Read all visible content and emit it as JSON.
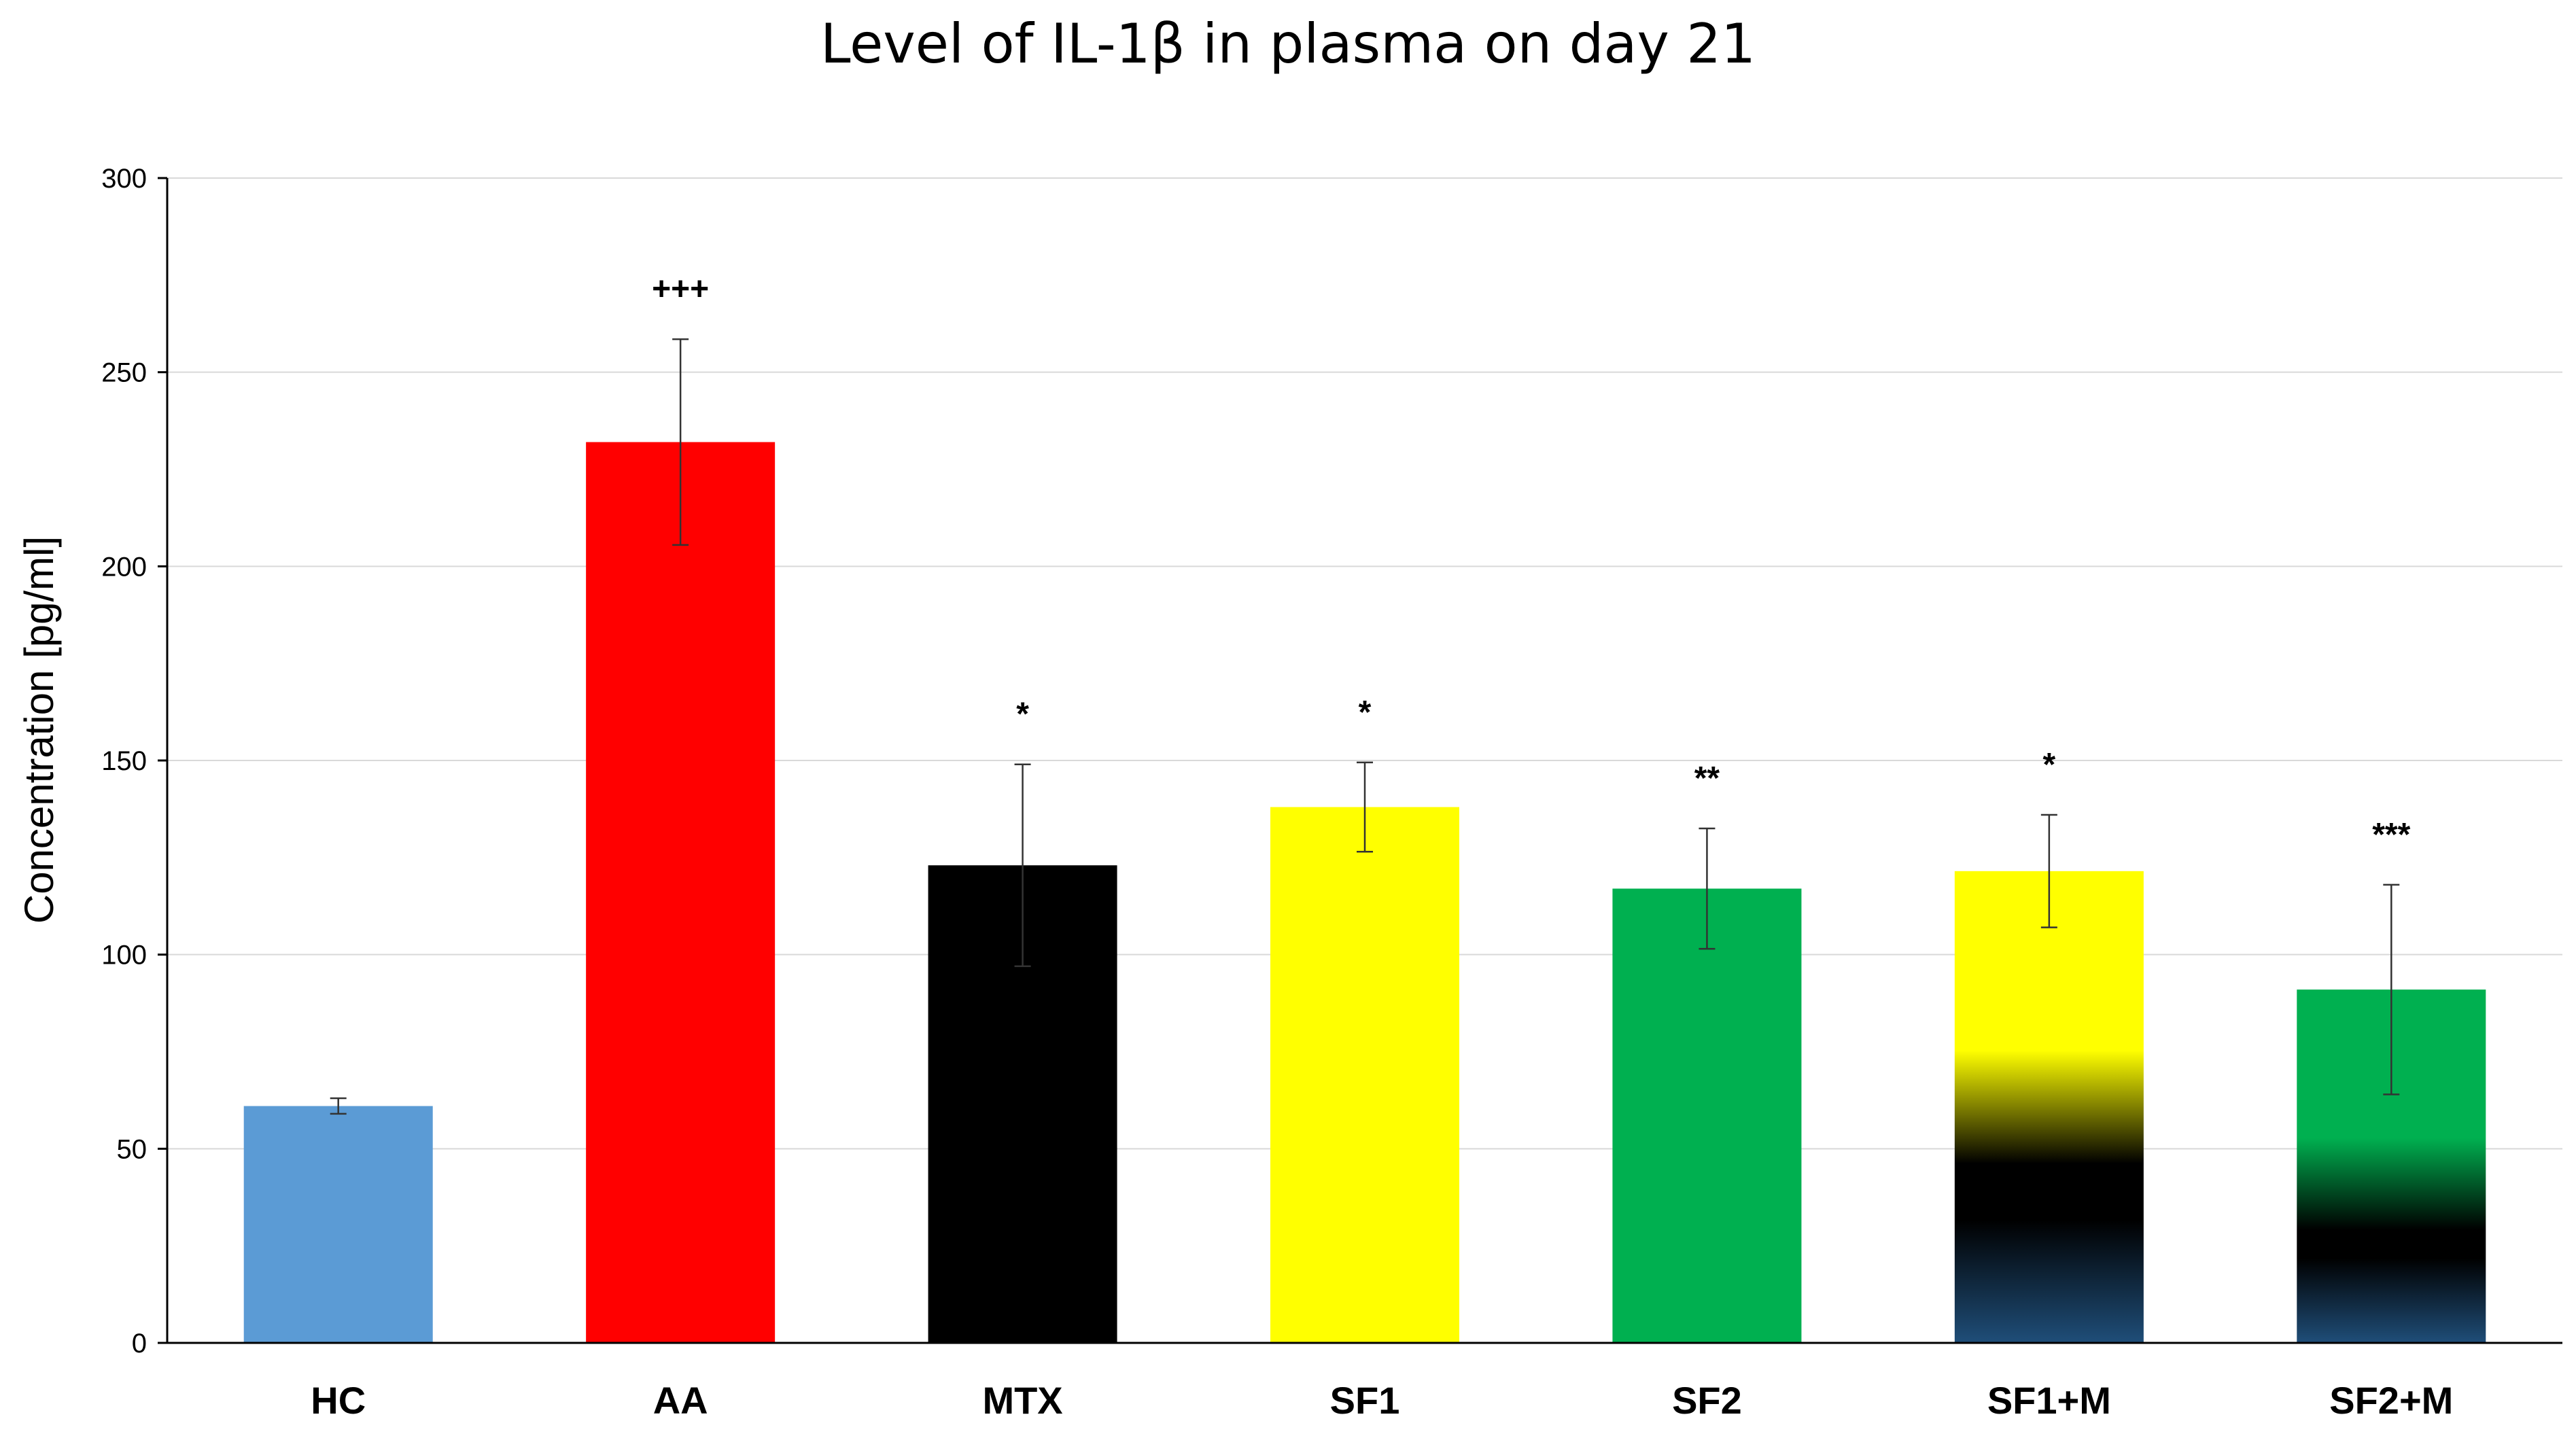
{
  "chart_data": {
    "type": "bar",
    "title": "Level of IL-1β in plasma on day 21",
    "xlabel": "",
    "ylabel": "Concentration [pg/ml]",
    "ylim": [
      0,
      300
    ],
    "yticks": [
      0,
      50,
      100,
      150,
      200,
      250,
      300
    ],
    "grid": true,
    "legend": "none",
    "categories": [
      "HC",
      "AA",
      "MTX",
      "SF1",
      "SF2",
      "SF1+M",
      "SF2+M"
    ],
    "values": [
      61,
      232,
      123,
      138,
      117,
      121.5,
      91
    ],
    "errors": [
      2,
      26.5,
      26,
      11.5,
      15.5,
      14.5,
      27
    ],
    "significance": [
      "",
      "+++",
      "*",
      "*",
      "**",
      "*",
      "***"
    ],
    "colors": [
      "#5B9BD5",
      "#FF0000",
      "#000000",
      "#FFFF00",
      "#00B050",
      "#FFFF00",
      "#00B050"
    ],
    "gradient_bars": {
      "SF1+M": {
        "top": "#FFFF00",
        "middle": "#000000",
        "bottom": "#1F4E79"
      },
      "SF2+M": {
        "top": "#00B050",
        "middle": "#000000",
        "bottom": "#1F4E79"
      }
    }
  }
}
